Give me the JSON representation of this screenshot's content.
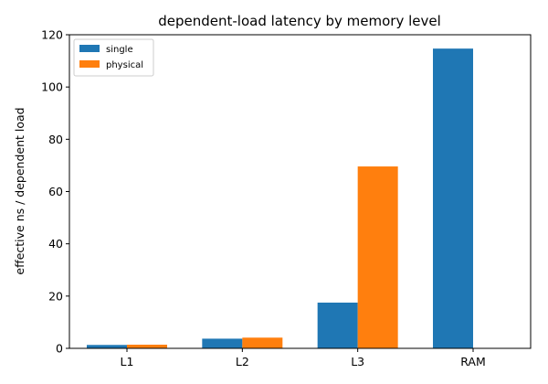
{
  "chart_data": {
    "type": "bar",
    "title": "dependent-load latency by memory level",
    "xlabel": "",
    "ylabel": "effective ns / dependent load",
    "categories": [
      "L1",
      "L2",
      "L3",
      "RAM"
    ],
    "series": [
      {
        "name": "single",
        "color": "#1f77b4",
        "values": [
          1.3,
          3.7,
          17.5,
          114.7
        ]
      },
      {
        "name": "physical",
        "color": "#ff7f0e",
        "values": [
          1.4,
          4.1,
          69.6,
          null
        ]
      }
    ],
    "ylim": [
      0,
      120
    ],
    "yticks": [
      0,
      20,
      40,
      60,
      80,
      100,
      120
    ],
    "grid": false,
    "legend_position": "top-left"
  }
}
